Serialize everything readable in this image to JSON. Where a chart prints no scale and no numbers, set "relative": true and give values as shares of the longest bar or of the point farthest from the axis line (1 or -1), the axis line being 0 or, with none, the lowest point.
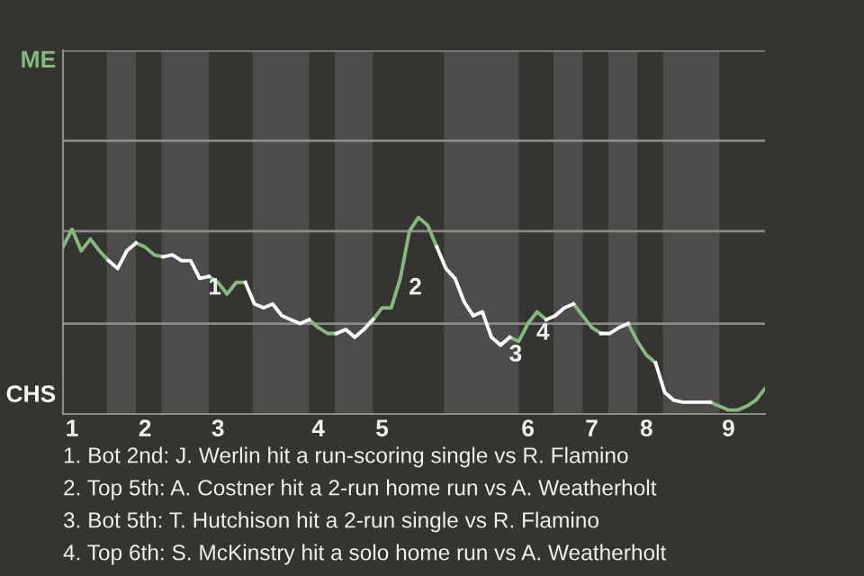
{
  "chart_data": {
    "type": "line",
    "relative": true,
    "categories": [
      null,
      "1",
      null,
      null,
      null,
      null,
      null,
      null,
      null,
      "2",
      null,
      null,
      null,
      null,
      null,
      null,
      null,
      "3",
      null,
      null,
      null,
      null,
      null,
      null,
      null,
      null,
      null,
      null,
      "4",
      null,
      null,
      null,
      null,
      null,
      null,
      "5",
      null,
      null,
      null,
      null,
      null,
      null,
      null,
      null,
      null,
      null,
      null,
      null,
      null,
      null,
      null,
      "6",
      null,
      null,
      null,
      null,
      null,
      null,
      "7",
      null,
      null,
      null,
      null,
      null,
      "8",
      null,
      null,
      null,
      null,
      null,
      null,
      null,
      null,
      "9",
      null,
      null,
      null,
      null
    ],
    "series": [
      {
        "color": "#86b97f",
        "values": [
          0.85,
          0.94,
          0.83,
          0.89,
          0.83,
          0.78,
          null,
          null,
          0.87,
          0.85,
          0.81,
          0.8,
          null,
          null,
          null,
          null,
          0.7,
          0.67,
          0.61,
          0.67,
          0.67,
          null,
          null,
          null,
          null,
          null,
          null,
          0.48,
          0.44,
          0.41,
          0.41,
          null,
          null,
          null,
          0.48,
          0.54,
          0.54,
          0.69,
          0.93,
          1,
          0.96,
          0.85,
          null,
          null,
          null,
          null,
          null,
          null,
          null,
          0.39,
          0.37,
          0.46,
          0.52,
          0.48,
          null,
          null,
          0.56,
          0.5,
          0.44,
          0.41,
          null,
          null,
          0.46,
          0.37,
          0.3,
          0.26,
          null,
          null,
          null,
          null,
          null,
          0.06,
          0.04,
          0.02,
          0.02,
          0.04,
          0.07,
          0.13
        ]
      },
      {
        "color": "#ffffff",
        "values": [
          null,
          null,
          null,
          null,
          null,
          0.78,
          0.74,
          0.83,
          0.87,
          null,
          null,
          0.8,
          0.81,
          0.78,
          0.78,
          0.69,
          0.7,
          null,
          null,
          null,
          0.67,
          0.56,
          0.54,
          0.56,
          0.5,
          0.48,
          0.46,
          0.48,
          null,
          null,
          0.41,
          0.43,
          0.39,
          0.43,
          0.48,
          null,
          null,
          null,
          null,
          null,
          null,
          0.85,
          0.74,
          0.69,
          0.57,
          0.5,
          0.52,
          0.39,
          0.35,
          0.39,
          null,
          null,
          null,
          0.48,
          0.5,
          0.54,
          0.56,
          null,
          null,
          0.41,
          0.41,
          0.44,
          0.46,
          null,
          null,
          0.26,
          0.11,
          0.07,
          0.06,
          0.06,
          0.06,
          0.06,
          null,
          null,
          null,
          null,
          null,
          null
        ]
      }
    ],
    "ref_lines": [
      {
        "axis": "y",
        "value": 0.46,
        "color": "#8a8a88"
      },
      {
        "axis": "y",
        "value": 0.93,
        "color": "#8a8a88"
      },
      {
        "axis": "y",
        "value": 1.39,
        "color": "#8a8a88"
      },
      {
        "axis": "y",
        "value": 1.85,
        "color": "#8a8a88"
      }
    ],
    "annotations": [
      "ME",
      "CHS",
      "1",
      "2",
      "3",
      "4",
      "1. Bot 2nd: J. Werlin hit a run-scoring single vs R. Flamino",
      "2. Top 5th: A. Costner hit a 2-run home run vs A. Weatherholt",
      "3. Bot 5th: T. Hutchison hit a 2-run single vs R. Flamino",
      "4. Top 6th: S. McKinstry hit a solo home run vs A. Weatherholt"
    ],
    "line_style": "solid",
    "marker": "none"
  }
}
